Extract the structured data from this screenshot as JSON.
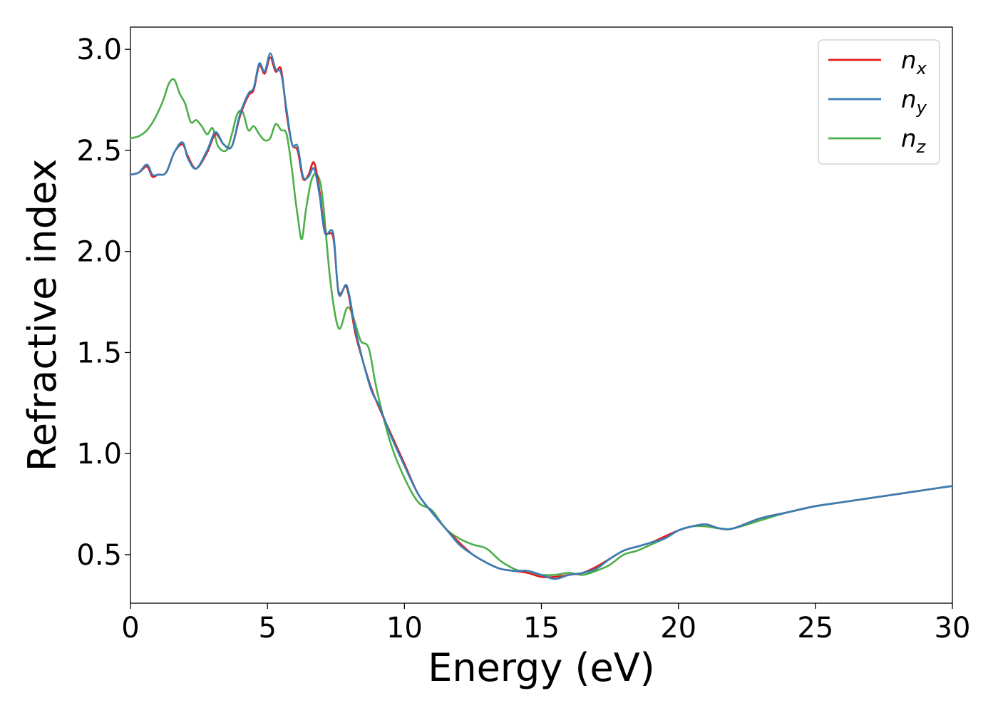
{
  "chart_data": {
    "type": "line",
    "title": "",
    "xlabel": "Energy (eV)",
    "ylabel": "Refractive index",
    "xlim": [
      0,
      30
    ],
    "ylim": [
      0.26,
      3.11
    ],
    "xticks": [
      0,
      5,
      10,
      15,
      20,
      25,
      30
    ],
    "xtick_labels": [
      "0",
      "5",
      "10",
      "15",
      "20",
      "25",
      "30"
    ],
    "yticks": [
      0.5,
      1.0,
      1.5,
      2.0,
      2.5,
      3.0
    ],
    "ytick_labels": [
      "0.5",
      "1.0",
      "1.5",
      "2.0",
      "2.5",
      "3.0"
    ],
    "grid": false,
    "legend_position": "top-right",
    "series": [
      {
        "name": "n_x",
        "label_base": "n",
        "label_sub": "x",
        "color": "#e41a1c",
        "x": [
          0,
          0.3,
          0.6,
          0.8,
          1.0,
          1.3,
          1.6,
          1.9,
          2.1,
          2.4,
          2.8,
          3.1,
          3.4,
          3.7,
          4.0,
          4.3,
          4.5,
          4.7,
          4.9,
          5.1,
          5.3,
          5.5,
          5.7,
          5.9,
          6.1,
          6.3,
          6.5,
          6.7,
          6.9,
          7.1,
          7.4,
          7.6,
          7.9,
          8.2,
          8.5,
          8.8,
          9.1,
          9.5,
          10.0,
          10.5,
          11.0,
          11.5,
          12.0,
          12.5,
          13.0,
          13.5,
          14.0,
          14.5,
          15.0,
          15.5,
          16.0,
          16.5,
          17.0,
          17.5,
          18.0,
          18.5,
          19.0,
          19.5,
          20.0,
          20.5,
          21.0,
          21.5,
          22.0,
          23.0,
          24.0,
          25.0,
          26.0,
          27.0,
          28.0,
          29.0,
          30.0
        ],
        "y": [
          2.38,
          2.39,
          2.42,
          2.37,
          2.38,
          2.39,
          2.49,
          2.53,
          2.47,
          2.41,
          2.49,
          2.58,
          2.53,
          2.52,
          2.67,
          2.77,
          2.8,
          2.92,
          2.88,
          2.96,
          2.89,
          2.9,
          2.68,
          2.53,
          2.5,
          2.36,
          2.38,
          2.44,
          2.3,
          2.1,
          2.07,
          1.8,
          1.82,
          1.6,
          1.45,
          1.32,
          1.22,
          1.1,
          0.95,
          0.8,
          0.71,
          0.63,
          0.56,
          0.5,
          0.46,
          0.43,
          0.42,
          0.41,
          0.39,
          0.39,
          0.4,
          0.41,
          0.44,
          0.48,
          0.52,
          0.54,
          0.56,
          0.59,
          0.62,
          0.64,
          0.65,
          0.63,
          0.63,
          0.68,
          0.71,
          0.74,
          0.76,
          0.78,
          0.8,
          0.82,
          0.84
        ]
      },
      {
        "name": "n_y",
        "label_base": "n",
        "label_sub": "y",
        "color": "#377eb8",
        "x": [
          0,
          0.3,
          0.6,
          0.8,
          1.0,
          1.3,
          1.6,
          1.9,
          2.1,
          2.4,
          2.8,
          3.1,
          3.4,
          3.7,
          4.0,
          4.3,
          4.5,
          4.7,
          4.9,
          5.1,
          5.3,
          5.5,
          5.7,
          5.9,
          6.1,
          6.3,
          6.5,
          6.7,
          6.9,
          7.1,
          7.4,
          7.6,
          7.9,
          8.2,
          8.5,
          8.8,
          9.1,
          9.5,
          10.0,
          10.5,
          11.0,
          11.5,
          12.0,
          12.5,
          13.0,
          13.5,
          14.0,
          14.5,
          15.0,
          15.5,
          16.0,
          16.5,
          17.0,
          17.5,
          18.0,
          18.5,
          19.0,
          19.5,
          20.0,
          20.5,
          21.0,
          21.5,
          22.0,
          23.0,
          24.0,
          25.0,
          26.0,
          27.0,
          28.0,
          29.0,
          30.0
        ],
        "y": [
          2.38,
          2.39,
          2.43,
          2.38,
          2.38,
          2.39,
          2.49,
          2.54,
          2.46,
          2.41,
          2.5,
          2.59,
          2.53,
          2.52,
          2.68,
          2.78,
          2.81,
          2.93,
          2.89,
          2.98,
          2.9,
          2.88,
          2.7,
          2.53,
          2.52,
          2.37,
          2.37,
          2.41,
          2.28,
          2.09,
          2.09,
          1.79,
          1.83,
          1.62,
          1.45,
          1.31,
          1.23,
          1.09,
          0.94,
          0.8,
          0.71,
          0.63,
          0.55,
          0.5,
          0.46,
          0.43,
          0.42,
          0.42,
          0.4,
          0.38,
          0.4,
          0.41,
          0.43,
          0.48,
          0.52,
          0.54,
          0.56,
          0.58,
          0.62,
          0.64,
          0.65,
          0.63,
          0.63,
          0.68,
          0.71,
          0.74,
          0.76,
          0.78,
          0.8,
          0.82,
          0.84
        ]
      },
      {
        "name": "n_z",
        "label_base": "n",
        "label_sub": "z",
        "color": "#4daf4a",
        "x": [
          0,
          0.3,
          0.6,
          0.9,
          1.2,
          1.4,
          1.6,
          1.8,
          2.0,
          2.2,
          2.4,
          2.6,
          2.8,
          3.0,
          3.2,
          3.5,
          3.7,
          3.9,
          4.1,
          4.3,
          4.5,
          4.7,
          4.9,
          5.1,
          5.3,
          5.5,
          5.7,
          5.9,
          6.0,
          6.1,
          6.25,
          6.4,
          6.6,
          6.8,
          7.0,
          7.3,
          7.6,
          7.9,
          8.1,
          8.4,
          8.7,
          9.0,
          9.5,
          10.0,
          10.5,
          11.0,
          11.5,
          12.0,
          12.5,
          13.0,
          13.5,
          14.0,
          14.5,
          15.0,
          15.5,
          16.0,
          16.5,
          17.0,
          17.5,
          18.0,
          18.5,
          19.0,
          19.5,
          20.0,
          20.5,
          21.0,
          21.5,
          22.0,
          23.0,
          24.0,
          25.0,
          26.0,
          27.0,
          28.0,
          29.0,
          30.0
        ],
        "y": [
          2.56,
          2.57,
          2.6,
          2.66,
          2.75,
          2.83,
          2.85,
          2.78,
          2.73,
          2.64,
          2.65,
          2.62,
          2.58,
          2.61,
          2.52,
          2.5,
          2.58,
          2.68,
          2.69,
          2.6,
          2.62,
          2.58,
          2.55,
          2.56,
          2.63,
          2.6,
          2.58,
          2.4,
          2.28,
          2.18,
          2.06,
          2.2,
          2.35,
          2.38,
          2.28,
          1.85,
          1.62,
          1.72,
          1.69,
          1.56,
          1.52,
          1.31,
          1.05,
          0.88,
          0.76,
          0.72,
          0.63,
          0.58,
          0.55,
          0.53,
          0.47,
          0.43,
          0.41,
          0.4,
          0.4,
          0.41,
          0.4,
          0.42,
          0.45,
          0.5,
          0.52,
          0.55,
          0.58,
          0.62,
          0.64,
          0.64,
          0.63,
          0.63,
          0.67,
          0.71,
          0.74,
          0.76,
          0.78,
          0.8,
          0.82,
          0.84
        ]
      }
    ]
  }
}
